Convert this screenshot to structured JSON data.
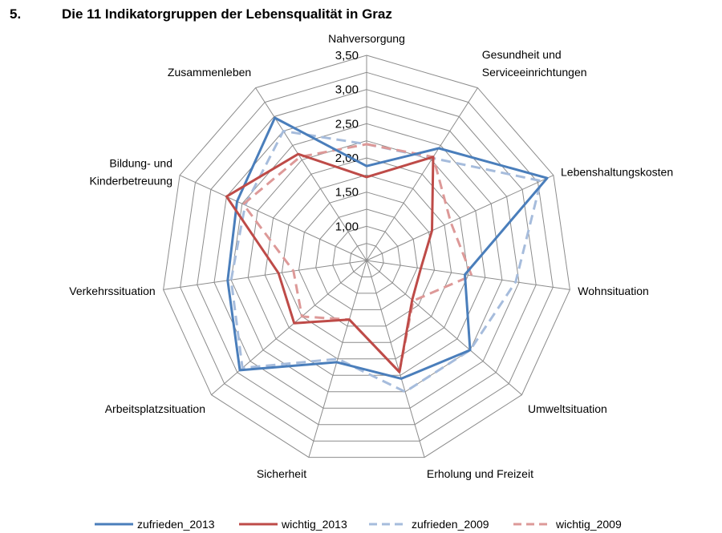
{
  "heading": {
    "number": "5.",
    "title": "Die 11 Indikatorgruppen der Lebensqualität in Graz"
  },
  "chart_data": {
    "type": "radar",
    "categories": [
      "Nahversorgung",
      "Gesundheit und Serviceeinrichtungen",
      "Lebenshaltungskosten",
      "Wohnsituation",
      "Umweltsituation",
      "Erholung und Freizeit",
      "Sicherheit",
      "Arbeitsplatzsituation",
      "Verkehrssituation",
      "Bildung- und Kinderbetreuung",
      "Zusammenleben"
    ],
    "category_label_lines": [
      [
        "Nahversorgung"
      ],
      [
        "Gesundheit und",
        "Serviceeinrichtungen"
      ],
      [
        "Lebenshaltungskosten"
      ],
      [
        "Wohnsituation"
      ],
      [
        "Umweltsituation"
      ],
      [
        "Erholung und Freizeit"
      ],
      [
        "Sicherheit"
      ],
      [
        "Arbeitsplatzsituation"
      ],
      [
        "Verkehrssituation"
      ],
      [
        "Bildung- und",
        "Kinderbetreuung"
      ],
      [
        "Zusammenleben"
      ]
    ],
    "axis": {
      "min": 0.5,
      "max": 3.5,
      "step": 0.25,
      "tick_labels": [
        "1,00",
        "1,50",
        "2,00",
        "2,50",
        "3,00",
        "3,50"
      ],
      "tick_values": [
        1.0,
        1.5,
        2.0,
        2.5,
        3.0,
        3.5
      ]
    },
    "series": [
      {
        "name": "zufrieden_2013",
        "color": "#4a7ebb",
        "dashed": false,
        "values": [
          1.88,
          2.45,
          3.4,
          1.95,
          2.5,
          2.3,
          2.05,
          2.95,
          2.55,
          2.58,
          2.98
        ]
      },
      {
        "name": "wichtig_2013",
        "color": "#be4b48",
        "dashed": false,
        "values": [
          1.72,
          2.3,
          1.55,
          1.3,
          1.38,
          2.2,
          1.4,
          1.9,
          1.8,
          2.75,
          2.35
        ]
      },
      {
        "name": "zufrieden_2009",
        "color": "#a6bcdc",
        "dashed": true,
        "values": [
          2.2,
          2.28,
          3.3,
          2.7,
          2.5,
          2.5,
          2.0,
          2.9,
          2.5,
          2.45,
          2.75
        ]
      },
      {
        "name": "wichtig_2009",
        "color": "#dd9998",
        "dashed": true,
        "values": [
          2.2,
          2.3,
          1.85,
          2.05,
          1.4,
          2.2,
          1.4,
          1.75,
          1.58,
          2.48,
          2.3
        ]
      }
    ],
    "legend": "bottom",
    "grid": true
  }
}
